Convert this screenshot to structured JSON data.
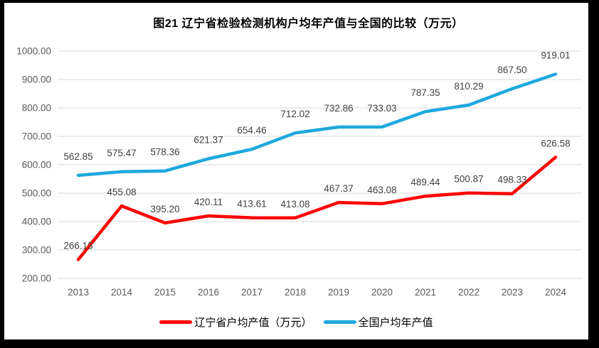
{
  "window": {
    "frame_color": "#000000",
    "surface_color": "#ffffff"
  },
  "colors": {
    "gridline": "#d9d9d9",
    "axis_labels": "#595959",
    "data_labels": "#404040",
    "title_text": "#000000",
    "series_liaoning": "#fe0505",
    "series_national": "#1ea8de"
  },
  "chart_data": {
    "type": "line",
    "title": "图21 辽宁省检验检测机构户均年产值与全国的比较（万元）",
    "categories": [
      "2013",
      "2014",
      "2015",
      "2016",
      "2017",
      "2018",
      "2019",
      "2020",
      "2021",
      "2022",
      "2023",
      "2024"
    ],
    "series": [
      {
        "name": "辽宁省户均产值（万元）",
        "color": "#fe0505",
        "values": [
          266.13,
          455.08,
          395.2,
          420.11,
          413.61,
          413.08,
          467.37,
          463.08,
          489.44,
          500.87,
          498.33,
          626.58
        ]
      },
      {
        "name": "全国户均年产值",
        "color": "#1ea8de",
        "values": [
          562.85,
          575.47,
          578.36,
          621.37,
          654.46,
          712.02,
          732.86,
          733.03,
          787.35,
          810.29,
          867.5,
          919.01
        ]
      }
    ],
    "xlabel": "",
    "ylabel": "",
    "ylim": [
      200,
      1000
    ],
    "ytick_step": 100,
    "ytick_labels": [
      "200.00",
      "300.00",
      "400.00",
      "500.00",
      "600.00",
      "700.00",
      "800.00",
      "900.00",
      "1000.00"
    ],
    "value_label_format": "0.00",
    "data_labels_visible": true,
    "grid": true,
    "legend_position": "bottom"
  }
}
